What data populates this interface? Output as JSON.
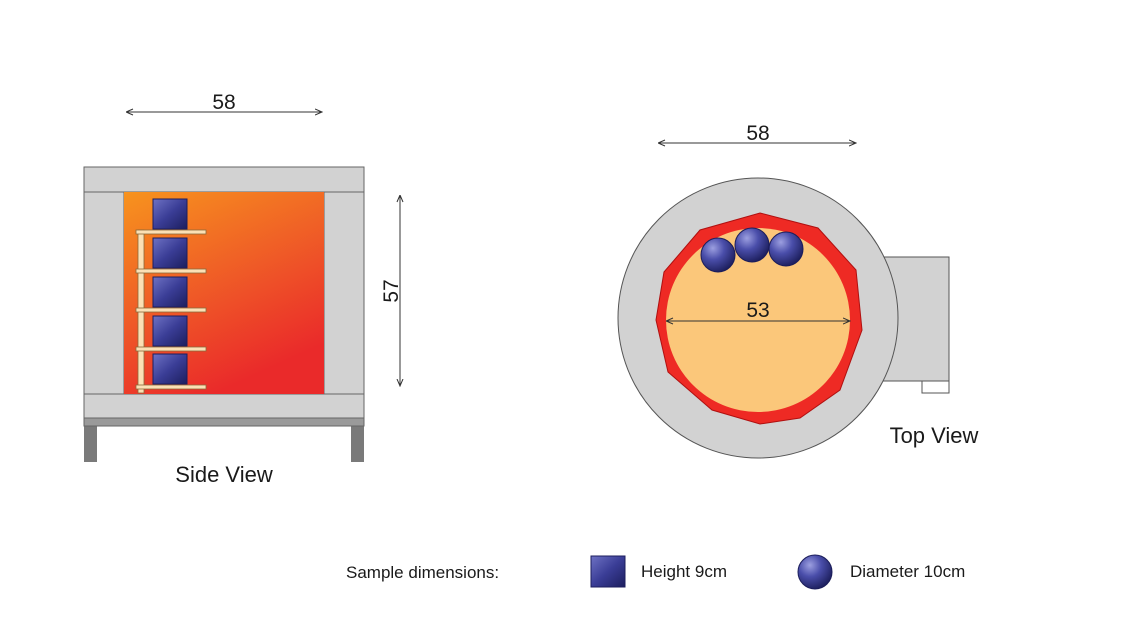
{
  "side_view": {
    "caption": "Side View",
    "width_label": "58",
    "height_label": "57",
    "sample_count": 5
  },
  "top_view": {
    "caption": "Top View",
    "width_label": "58",
    "inner_label": "53",
    "sample_count": 3
  },
  "legend": {
    "title": "Sample dimensions:",
    "cube_label": "Height 9cm",
    "sphere_label": "Diameter 10cm"
  },
  "colors": {
    "wall_gray": "#d2d2d2",
    "outline": "#555555",
    "heat_top": "#f7931e",
    "heat_bottom": "#ea2a2a",
    "chamber_ring": "#ee2a24",
    "chamber_fill": "#fbc77a",
    "sample_blue": "#3a3d96",
    "shelf": "#fbe0b5"
  }
}
